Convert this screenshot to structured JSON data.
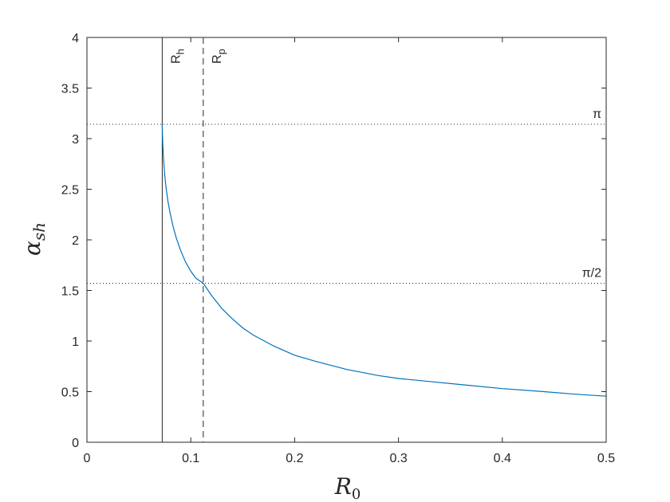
{
  "chart_data": {
    "type": "line",
    "xlabel_main": "R",
    "xlabel_sub": "0",
    "ylabel_main": "α",
    "ylabel_sub": "sh",
    "xlim": [
      0,
      0.5
    ],
    "ylim": [
      0,
      4
    ],
    "xticks": [
      0,
      0.1,
      0.2,
      0.3,
      0.4,
      0.5
    ],
    "xtick_labels": [
      "0",
      "0.1",
      "0.2",
      "0.3",
      "0.4",
      "0.5"
    ],
    "yticks": [
      0,
      0.5,
      1,
      1.5,
      2,
      2.5,
      3,
      3.5,
      4
    ],
    "ytick_labels": [
      "0",
      "0.5",
      "1",
      "1.5",
      "2",
      "2.5",
      "3",
      "3.5",
      "4"
    ],
    "grid": false,
    "series": [
      {
        "color": "#0072BD",
        "x": [
          0.0725,
          0.0727,
          0.073,
          0.0735,
          0.074,
          0.075,
          0.076,
          0.078,
          0.08,
          0.083,
          0.086,
          0.09,
          0.095,
          0.1,
          0.105,
          0.112,
          0.12,
          0.13,
          0.14,
          0.15,
          0.16,
          0.18,
          0.2,
          0.22,
          0.25,
          0.28,
          0.3,
          0.33,
          0.36,
          0.4,
          0.44,
          0.47,
          0.5
        ],
        "y": [
          3.1416,
          3.05,
          2.95,
          2.85,
          2.76,
          2.63,
          2.53,
          2.38,
          2.27,
          2.13,
          2.02,
          1.9,
          1.78,
          1.69,
          1.62,
          1.5708,
          1.45,
          1.32,
          1.22,
          1.13,
          1.06,
          0.95,
          0.86,
          0.8,
          0.72,
          0.66,
          0.63,
          0.6,
          0.57,
          0.53,
          0.5,
          0.475,
          0.455
        ]
      }
    ],
    "vlines": [
      {
        "x": 0.0725,
        "style": "solid",
        "label": "R",
        "label_sub": "h"
      },
      {
        "x": 0.112,
        "style": "dashed",
        "label": "R",
        "label_sub": "p"
      }
    ],
    "hlines": [
      {
        "y": 3.1416,
        "style": "dotted",
        "label": "π"
      },
      {
        "y": 1.5708,
        "style": "dotted",
        "label": "π/2"
      }
    ]
  }
}
